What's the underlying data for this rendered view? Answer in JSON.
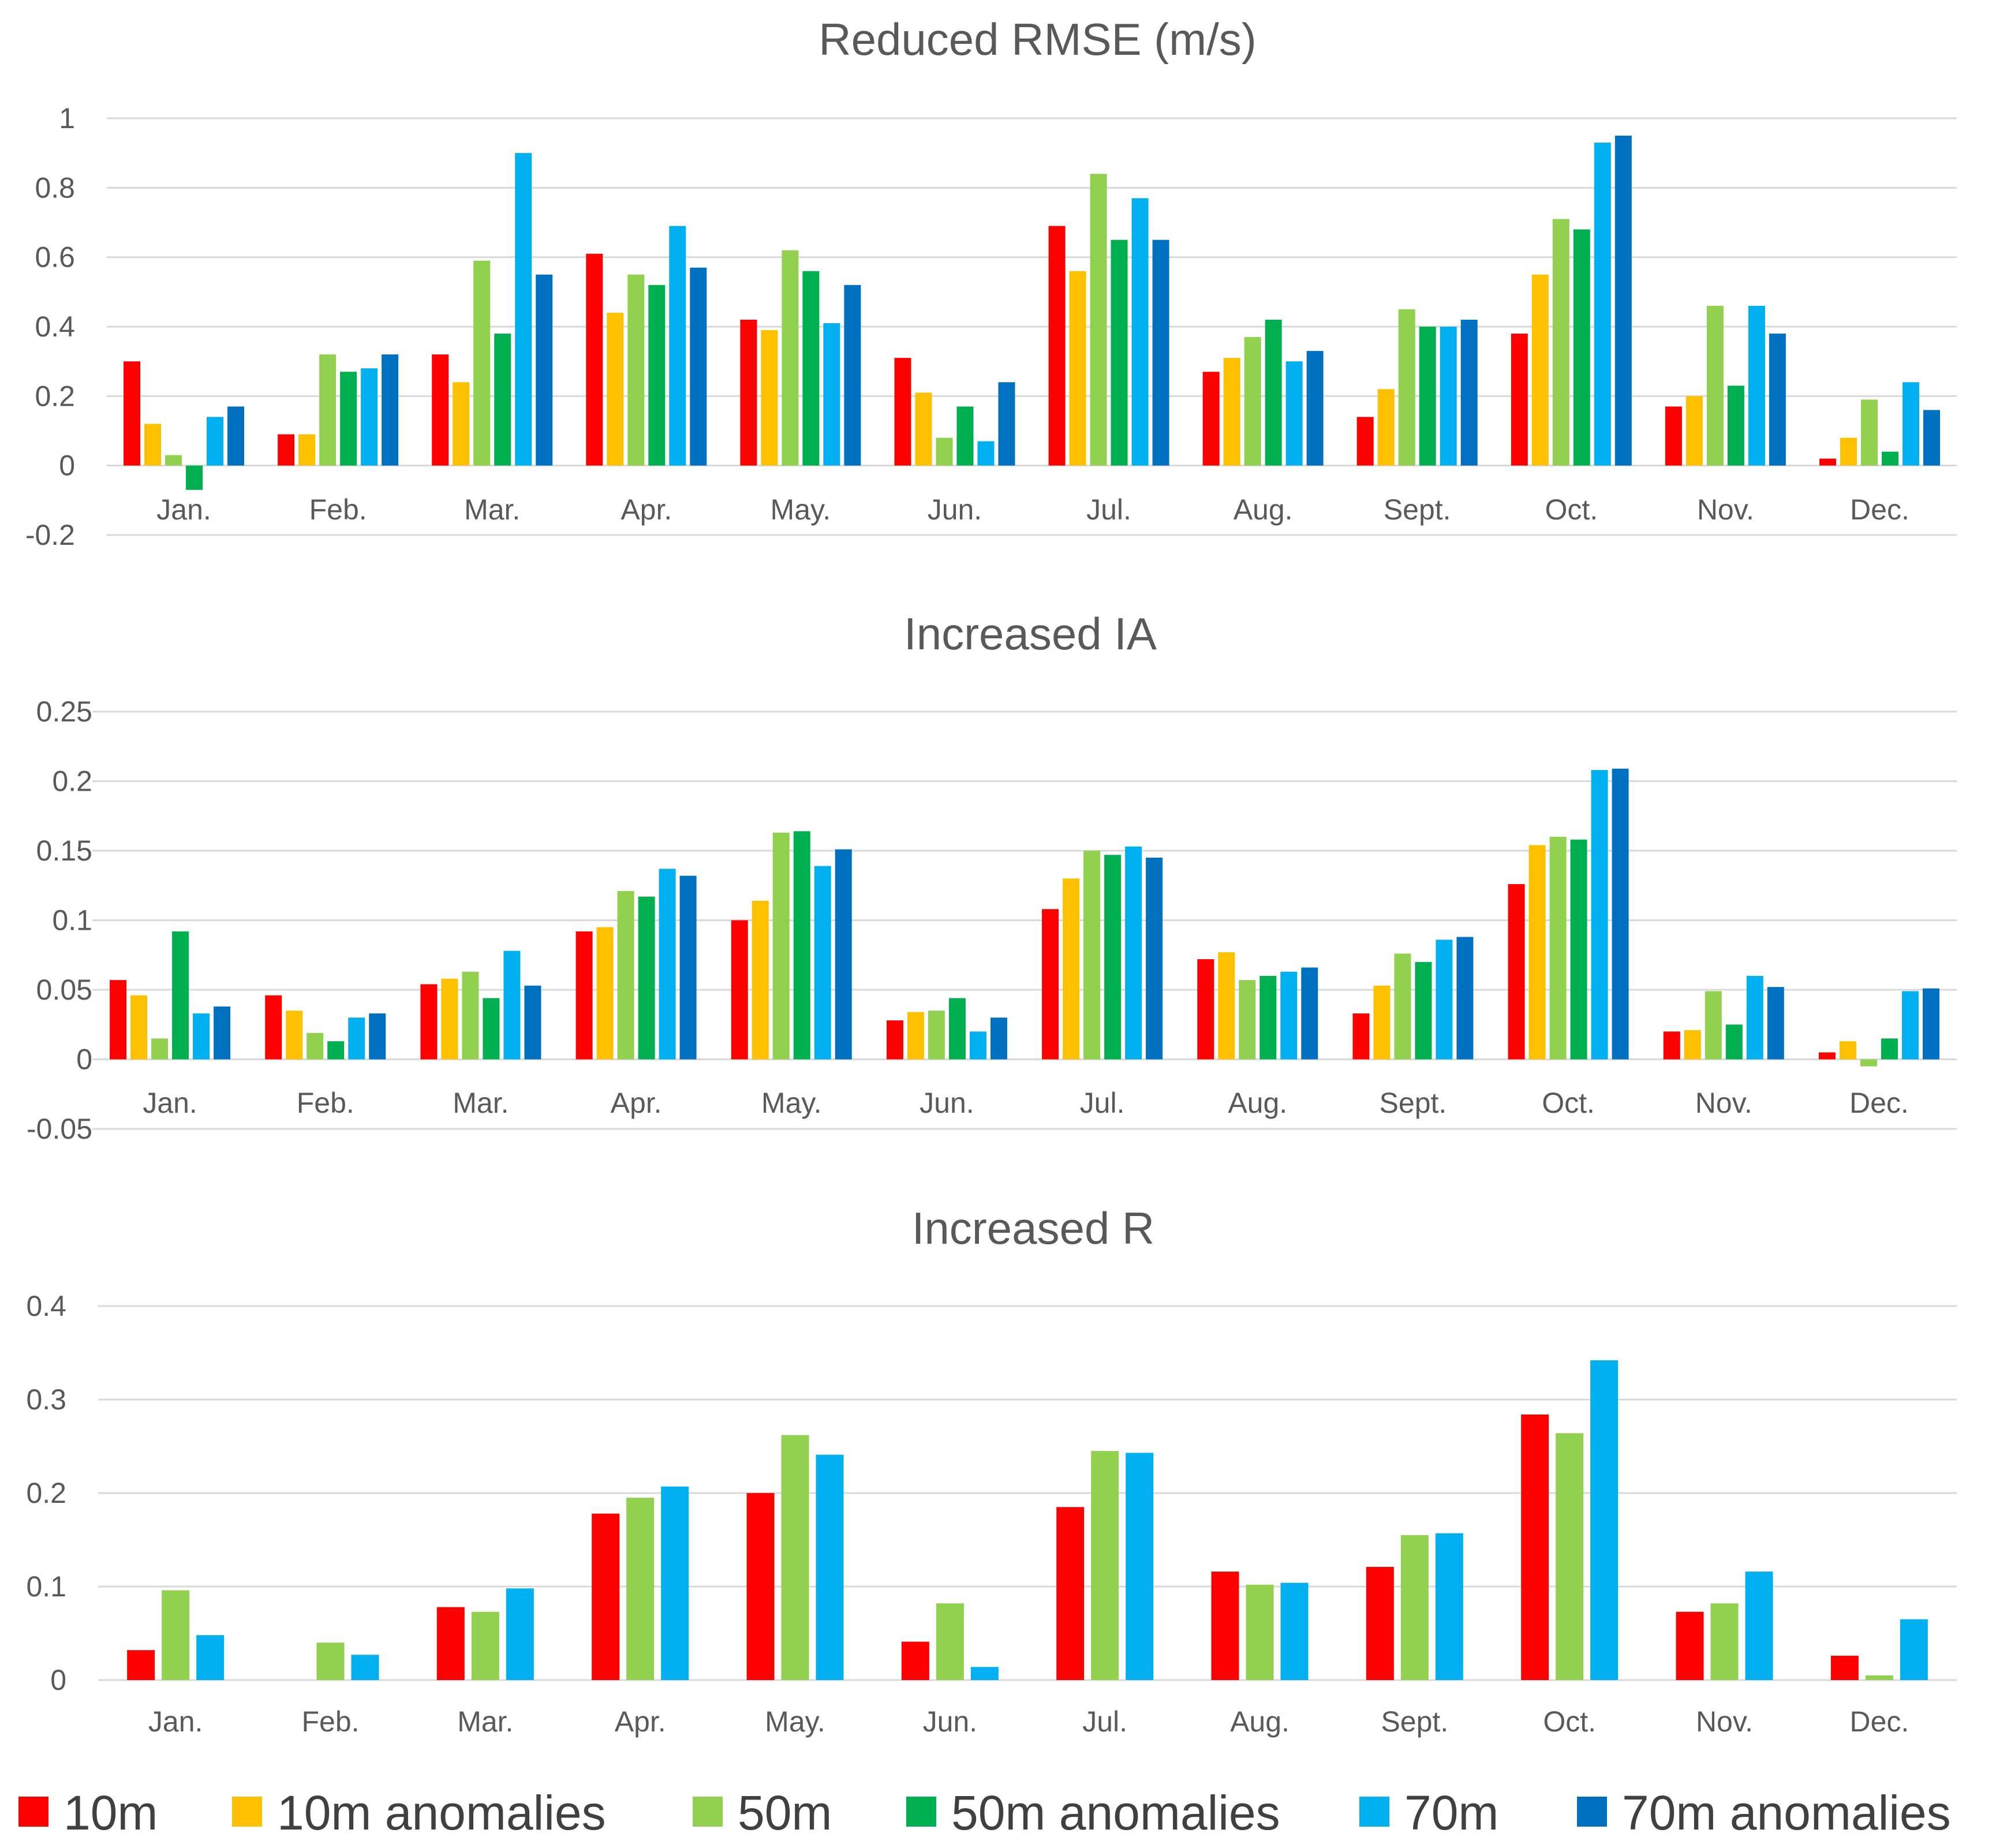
{
  "colors": {
    "series": [
      "#ff0000",
      "#ffc000",
      "#92d050",
      "#00b050",
      "#00b0f0",
      "#0070c0"
    ],
    "grid": "#d9d9d9",
    "text": "#595959"
  },
  "legend": [
    {
      "name": "10m",
      "color": "#ff0000"
    },
    {
      "name": "10m anomalies",
      "color": "#ffc000"
    },
    {
      "name": "50m",
      "color": "#92d050"
    },
    {
      "name": "50m anomalies",
      "color": "#00b050"
    },
    {
      "name": "70m",
      "color": "#00b0f0"
    },
    {
      "name": "70m anomalies",
      "color": "#0070c0"
    }
  ],
  "chart_data": [
    {
      "type": "bar",
      "title": "Reduced RMSE (m/s)",
      "categories": [
        "Jan.",
        "Feb.",
        "Mar.",
        "Apr.",
        "May.",
        "Jun.",
        "Jul.",
        "Aug.",
        "Sept.",
        "Oct.",
        "Nov.",
        "Dec."
      ],
      "ylim": [
        -0.2,
        1
      ],
      "yticks": [
        1,
        0.8,
        0.6,
        0.4,
        0.2,
        0,
        -0.2
      ],
      "ytick_labels": [
        "1",
        "0.8",
        "0.6",
        "0.4",
        "0.2",
        "0",
        "-0.2"
      ],
      "grid": true,
      "series": [
        {
          "name": "10m",
          "color": "#ff0000",
          "values": [
            0.3,
            0.09,
            0.32,
            0.61,
            0.42,
            0.31,
            0.69,
            0.27,
            0.14,
            0.38,
            0.17,
            0.02
          ]
        },
        {
          "name": "10m anomalies",
          "color": "#ffc000",
          "values": [
            0.12,
            0.09,
            0.24,
            0.44,
            0.39,
            0.21,
            0.56,
            0.31,
            0.22,
            0.55,
            0.2,
            0.08
          ]
        },
        {
          "name": "50m",
          "color": "#92d050",
          "values": [
            0.03,
            0.32,
            0.59,
            0.55,
            0.62,
            0.08,
            0.84,
            0.37,
            0.45,
            0.71,
            0.46,
            0.19
          ]
        },
        {
          "name": "50m anomalies",
          "color": "#00b050",
          "values": [
            -0.07,
            0.27,
            0.38,
            0.52,
            0.56,
            0.17,
            0.65,
            0.42,
            0.4,
            0.68,
            0.23,
            0.04
          ]
        },
        {
          "name": "70m",
          "color": "#00b0f0",
          "values": [
            0.14,
            0.28,
            0.9,
            0.69,
            0.41,
            0.07,
            0.77,
            0.3,
            0.4,
            0.93,
            0.46,
            0.24
          ]
        },
        {
          "name": "70m anomalies",
          "color": "#0070c0",
          "values": [
            0.17,
            0.32,
            0.55,
            0.57,
            0.52,
            0.24,
            0.65,
            0.33,
            0.42,
            0.95,
            0.38,
            0.16
          ]
        }
      ]
    },
    {
      "type": "bar",
      "title": "Increased IA",
      "categories": [
        "Jan.",
        "Feb.",
        "Mar.",
        "Apr.",
        "May.",
        "Jun.",
        "Jul.",
        "Aug.",
        "Sept.",
        "Oct.",
        "Nov.",
        "Dec."
      ],
      "ylim": [
        -0.05,
        0.25
      ],
      "yticks": [
        0.25,
        0.2,
        0.15,
        0.1,
        0.05,
        0,
        -0.05
      ],
      "ytick_labels": [
        "0.25",
        "0.2",
        "0.15",
        "0.1",
        "0.05",
        "0",
        "-0.05"
      ],
      "grid": true,
      "series": [
        {
          "name": "10m",
          "color": "#ff0000",
          "values": [
            0.057,
            0.046,
            0.054,
            0.092,
            0.1,
            0.028,
            0.108,
            0.072,
            0.033,
            0.126,
            0.02,
            0.005
          ]
        },
        {
          "name": "10m anomalies",
          "color": "#ffc000",
          "values": [
            0.046,
            0.035,
            0.058,
            0.095,
            0.114,
            0.034,
            0.13,
            0.077,
            0.053,
            0.154,
            0.021,
            0.013
          ]
        },
        {
          "name": "50m",
          "color": "#92d050",
          "values": [
            0.015,
            0.019,
            0.063,
            0.121,
            0.163,
            0.035,
            0.15,
            0.057,
            0.076,
            0.16,
            0.049,
            -0.005
          ]
        },
        {
          "name": "50m anomalies",
          "color": "#00b050",
          "values": [
            0.092,
            0.013,
            0.044,
            0.117,
            0.164,
            0.044,
            0.147,
            0.06,
            0.07,
            0.158,
            0.025,
            0.015
          ]
        },
        {
          "name": "70m",
          "color": "#00b0f0",
          "values": [
            0.033,
            0.03,
            0.078,
            0.137,
            0.139,
            0.02,
            0.153,
            0.063,
            0.086,
            0.208,
            0.06,
            0.049
          ]
        },
        {
          "name": "70m anomalies",
          "color": "#0070c0",
          "values": [
            0.038,
            0.033,
            0.053,
            0.132,
            0.151,
            0.03,
            0.145,
            0.066,
            0.088,
            0.209,
            0.052,
            0.051
          ]
        }
      ]
    },
    {
      "type": "bar",
      "title": "Increased R",
      "categories": [
        "Jan.",
        "Feb.",
        "Mar.",
        "Apr.",
        "May.",
        "Jun.",
        "Jul.",
        "Aug.",
        "Sept.",
        "Oct.",
        "Nov.",
        "Dec."
      ],
      "ylim": [
        0,
        0.4
      ],
      "yticks": [
        0.4,
        0.3,
        0.2,
        0.1,
        0
      ],
      "ytick_labels": [
        "0.4",
        "0.3",
        "0.2",
        "0.1",
        "0"
      ],
      "grid": true,
      "series": [
        {
          "name": "10m",
          "color": "#ff0000",
          "values": [
            0.032,
            0.0,
            0.078,
            0.178,
            0.2,
            0.041,
            0.185,
            0.116,
            0.121,
            0.284,
            0.073,
            0.026
          ]
        },
        {
          "name": "50m",
          "color": "#92d050",
          "values": [
            0.096,
            0.04,
            0.073,
            0.195,
            0.262,
            0.082,
            0.245,
            0.102,
            0.155,
            0.264,
            0.082,
            0.005
          ]
        },
        {
          "name": "70m",
          "color": "#00b0f0",
          "values": [
            0.048,
            0.027,
            0.098,
            0.207,
            0.241,
            0.014,
            0.243,
            0.104,
            0.157,
            0.342,
            0.116,
            0.065
          ]
        }
      ]
    }
  ]
}
